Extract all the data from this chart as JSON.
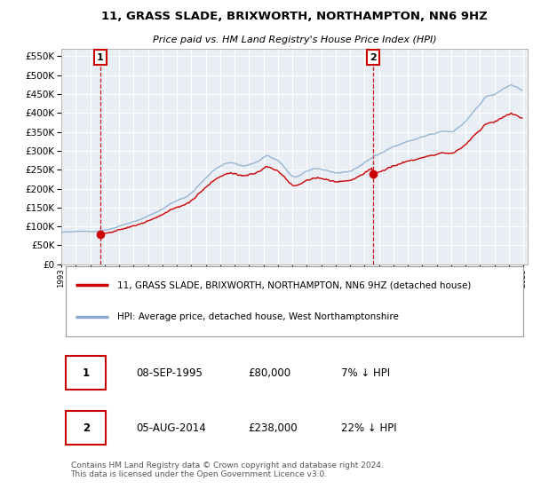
{
  "title": "11, GRASS SLADE, BRIXWORTH, NORTHAMPTON, NN6 9HZ",
  "subtitle": "Price paid vs. HM Land Registry's House Price Index (HPI)",
  "ylabel_vals": [
    0,
    50000,
    100000,
    150000,
    200000,
    250000,
    300000,
    350000,
    400000,
    450000,
    500000,
    550000
  ],
  "ylim": [
    0,
    570000
  ],
  "xlim_start": 1993.0,
  "xlim_end": 2025.3,
  "sale1_year": 1995.69,
  "sale1_price": 80000,
  "sale1_label": "1",
  "sale1_date": "08-SEP-1995",
  "sale1_hpi_pct": "7% ↓ HPI",
  "sale2_year": 2014.59,
  "sale2_price": 238000,
  "sale2_label": "2",
  "sale2_date": "05-AUG-2014",
  "sale2_hpi_pct": "22% ↓ HPI",
  "red_line_color": "#cc0000",
  "blue_line_color": "#88aacc",
  "legend_label1": "11, GRASS SLADE, BRIXWORTH, NORTHAMPTON, NN6 9HZ (detached house)",
  "legend_label2": "HPI: Average price, detached house, West Northamptonshire",
  "footer": "Contains HM Land Registry data © Crown copyright and database right 2024.\nThis data is licensed under the Open Government Licence v3.0.",
  "bg_color": "#e8eef4",
  "grid_color": "#ffffff",
  "hpi_index_at_sale1": 86000,
  "sale1_actual_price": 80000,
  "sale2_actual_price": 238000,
  "hpi_index_at_sale2": 305000
}
